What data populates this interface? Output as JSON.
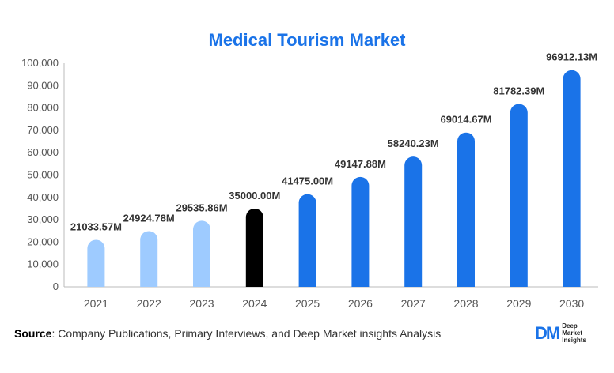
{
  "chart_data": {
    "type": "bar",
    "title": "Medical Tourism Market",
    "categories": [
      "2021",
      "2022",
      "2023",
      "2024",
      "2025",
      "2026",
      "2027",
      "2028",
      "2029",
      "2030"
    ],
    "values": [
      21033.57,
      24924.78,
      29535.86,
      35000.0,
      41475.0,
      49147.88,
      58240.23,
      69014.67,
      81782.39,
      96912.13
    ],
    "data_labels": [
      "21033.57M",
      "24924.78M",
      "29535.86M",
      "35000.00M",
      "41475.00M",
      "49147.88M",
      "58240.23M",
      "69014.67M",
      "81782.39M",
      "96912.13M"
    ],
    "bar_colors": [
      "#9ecbff",
      "#9ecbff",
      "#9ecbff",
      "#000000",
      "#1a73e8",
      "#1a73e8",
      "#1a73e8",
      "#1a73e8",
      "#1a73e8",
      "#1a73e8"
    ],
    "y_ticks": [
      "0",
      "10,000",
      "20,000",
      "30,000",
      "40,000",
      "50,000",
      "60,000",
      "70,000",
      "80,000",
      "90,000",
      "100,000"
    ],
    "ylim": [
      0,
      100000
    ],
    "xlabel": "",
    "ylabel": "",
    "grid": false,
    "legend": "none"
  },
  "source": {
    "label": "Source",
    "text": ": Company Publications, Primary Interviews, and Deep Market insights Analysis"
  },
  "logo": {
    "mark": "DM",
    "line1": "Deep",
    "line2": "Market",
    "line3": "Insights"
  }
}
